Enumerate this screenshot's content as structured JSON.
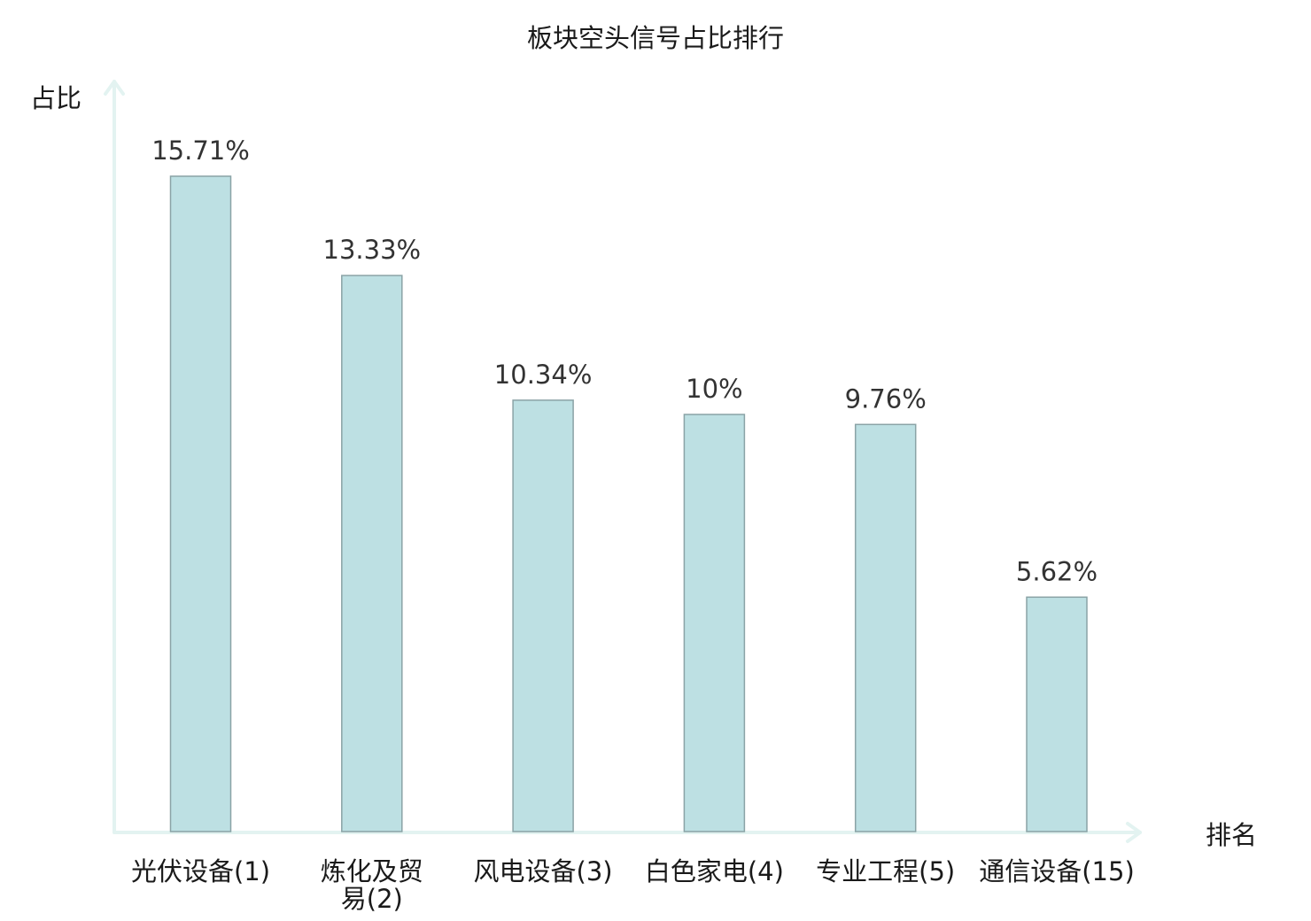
{
  "chart_data": {
    "type": "bar",
    "title": "板块空头信号占比排行",
    "ylabel": "占比",
    "xlabel": "排名",
    "categories": [
      "光伏设备(1)",
      "炼化及贸易(2)",
      "风电设备(3)",
      "白色家电(4)",
      "专业工程(5)",
      "通信设备(15)"
    ],
    "category_lines": [
      [
        "光伏设备(1)"
      ],
      [
        "炼化及贸",
        "易(2)"
      ],
      [
        "风电设备(3)"
      ],
      [
        "白色家电(4)"
      ],
      [
        "专业工程(5)"
      ],
      [
        "通信设备(15)"
      ]
    ],
    "values": [
      15.71,
      13.33,
      10.34,
      10,
      9.76,
      5.62
    ],
    "value_labels": [
      "15.71%",
      "13.33%",
      "10.34%",
      "10%",
      "9.76%",
      "5.62%"
    ],
    "highlight_index": 5,
    "ylim": [
      0,
      15.71
    ],
    "grid": false,
    "legend": "none",
    "colors": {
      "bar_fill": "#bde0e3",
      "bar_stroke": "#8aa3a6",
      "axis": "#e3f3f1",
      "highlight_text": "#e02020",
      "text": "#1a1a1a"
    }
  }
}
